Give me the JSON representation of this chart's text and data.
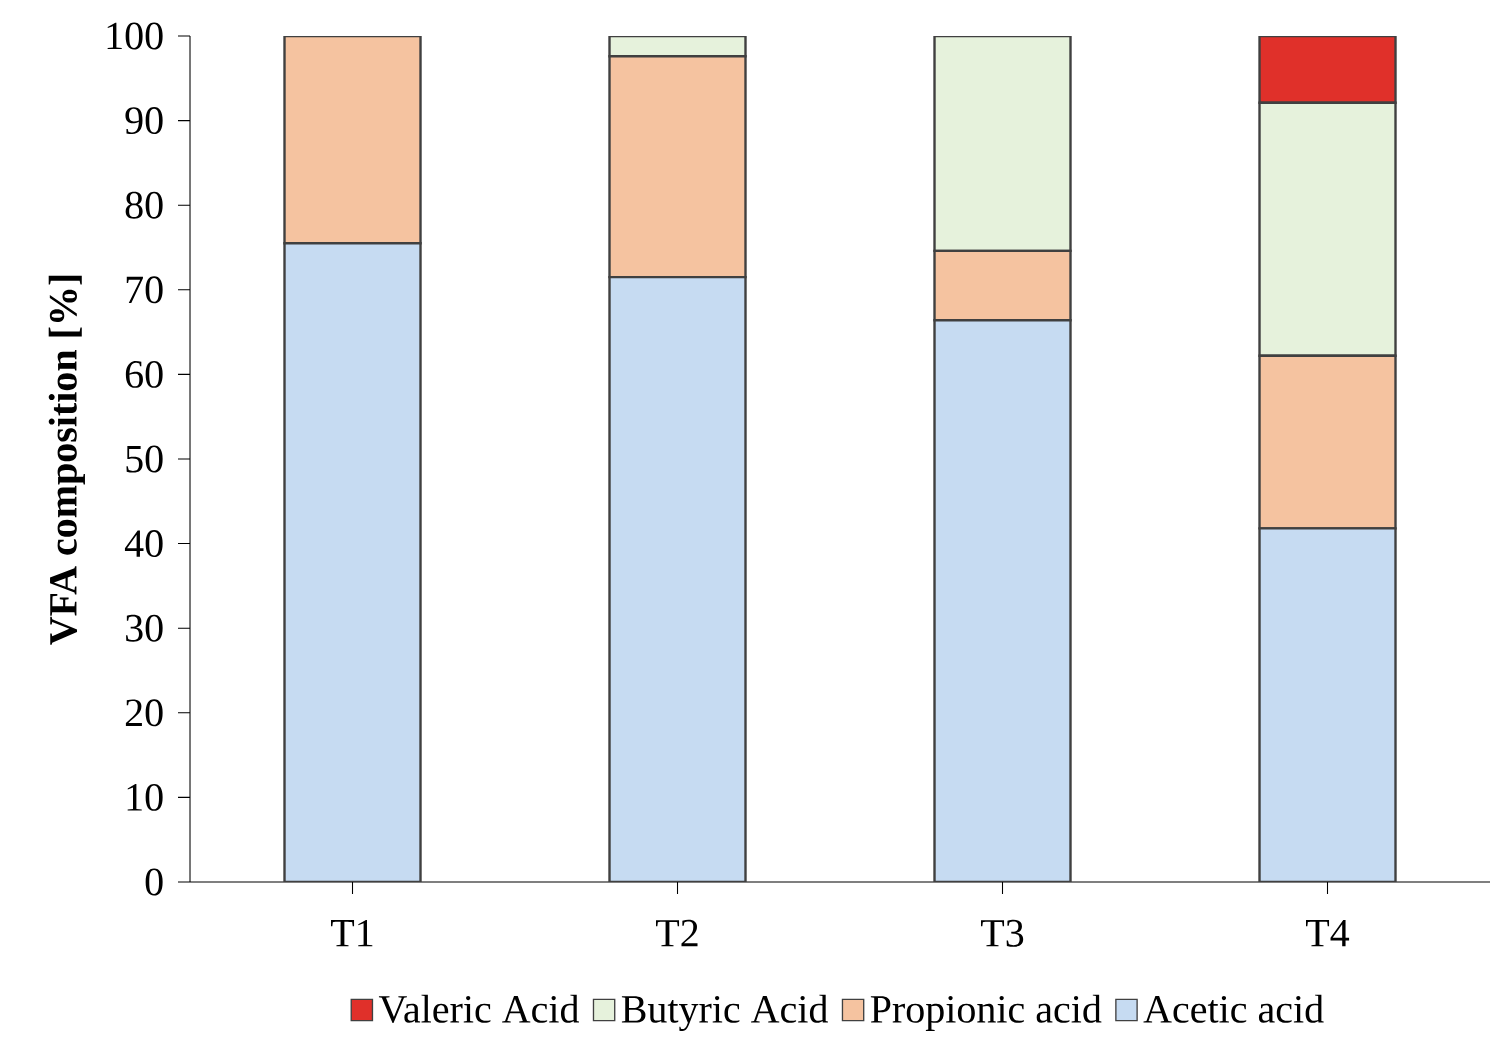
{
  "chart_data": {
    "type": "bar",
    "stacked": true,
    "ylabel": "VFA composition [%]",
    "categories": [
      "T1",
      "T2",
      "T3",
      "T4"
    ],
    "series": [
      {
        "name": "Acetic acid",
        "color": "#c6dbf2",
        "values": [
          75.5,
          71.5,
          66.4,
          41.8
        ]
      },
      {
        "name": "Propionic acid",
        "color": "#f5c3a0",
        "values": [
          24.5,
          26.1,
          8.2,
          20.4
        ]
      },
      {
        "name": "Butyric Acid",
        "color": "#e6f2dc",
        "values": [
          0,
          2.4,
          25.4,
          29.9
        ]
      },
      {
        "name": "Valeric Acid",
        "color": "#e0302a",
        "values": [
          0,
          0,
          0,
          7.9
        ]
      }
    ],
    "ylim": [
      0,
      100
    ],
    "yticks": [
      0,
      10,
      20,
      30,
      40,
      50,
      60,
      70,
      80,
      90,
      100
    ],
    "grid": false,
    "legend": "bottom"
  }
}
